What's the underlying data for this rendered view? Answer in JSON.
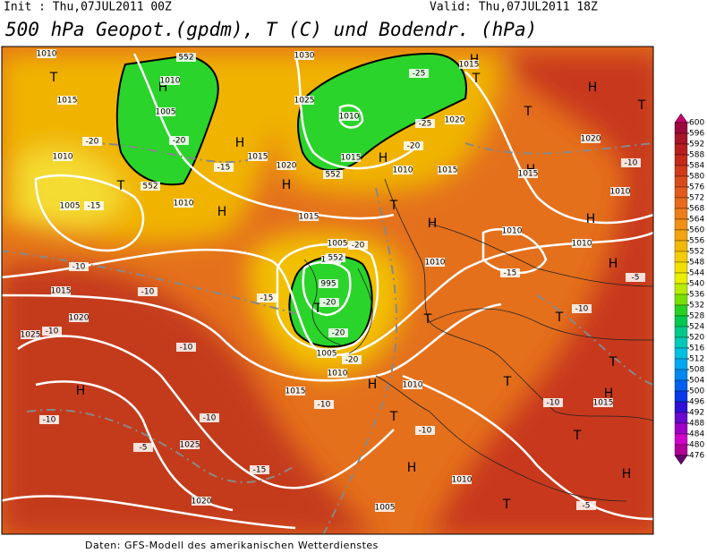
{
  "header": {
    "init": "Init : Thu,07JUL2011 00Z",
    "valid": "Valid: Thu,07JUL2011 18Z",
    "title": "500 hPa Geopot.(gpdm), T (C) und Bodendr. (hPa)"
  },
  "footer": "Daten: GFS-Modell des amerikanischen Wetterdienstes",
  "colorbar": [
    600,
    596,
    592,
    588,
    584,
    580,
    576,
    572,
    568,
    564,
    560,
    556,
    552,
    548,
    544,
    540,
    536,
    532,
    528,
    524,
    520,
    516,
    512,
    508,
    504,
    500,
    496,
    492,
    488,
    484,
    480,
    476
  ],
  "map_labels": [
    "1010",
    "T",
    "1015",
    "-20",
    "1010",
    "T",
    "1005",
    "-15",
    "-10",
    "1015",
    "1020",
    "1025",
    "-10",
    "H",
    "-10",
    "-5",
    "1025",
    "1020",
    "-15",
    "-10",
    "-10",
    "-10",
    "H",
    "1005",
    "1010",
    "-20",
    "H",
    "1015",
    "1020",
    "H",
    "-15",
    "H",
    "1010",
    "1015",
    "1030",
    "1025",
    "1010",
    "-25",
    "-25",
    "1020",
    "-20",
    "1015",
    "H",
    "1010",
    "1015",
    "T",
    "H",
    "1015",
    "H",
    "T",
    "1020",
    "T",
    "H",
    "1015",
    "-10",
    "1010",
    "H",
    "1010",
    "1010",
    "-15",
    "H",
    "-5",
    "T",
    "-10",
    "T",
    "H",
    "1005",
    "-20",
    "1000",
    "995",
    "T",
    "-20",
    "-15",
    "-20",
    "1005",
    "-20",
    "1010",
    "1010",
    "T",
    "1015",
    "H",
    "-10",
    "1010",
    "T",
    "T",
    "-10",
    "-10",
    "H",
    "T",
    "1015",
    "T",
    "H",
    "1010",
    "H",
    "T",
    "1005",
    "-5",
    "552",
    "552",
    "552",
    "552"
  ]
}
